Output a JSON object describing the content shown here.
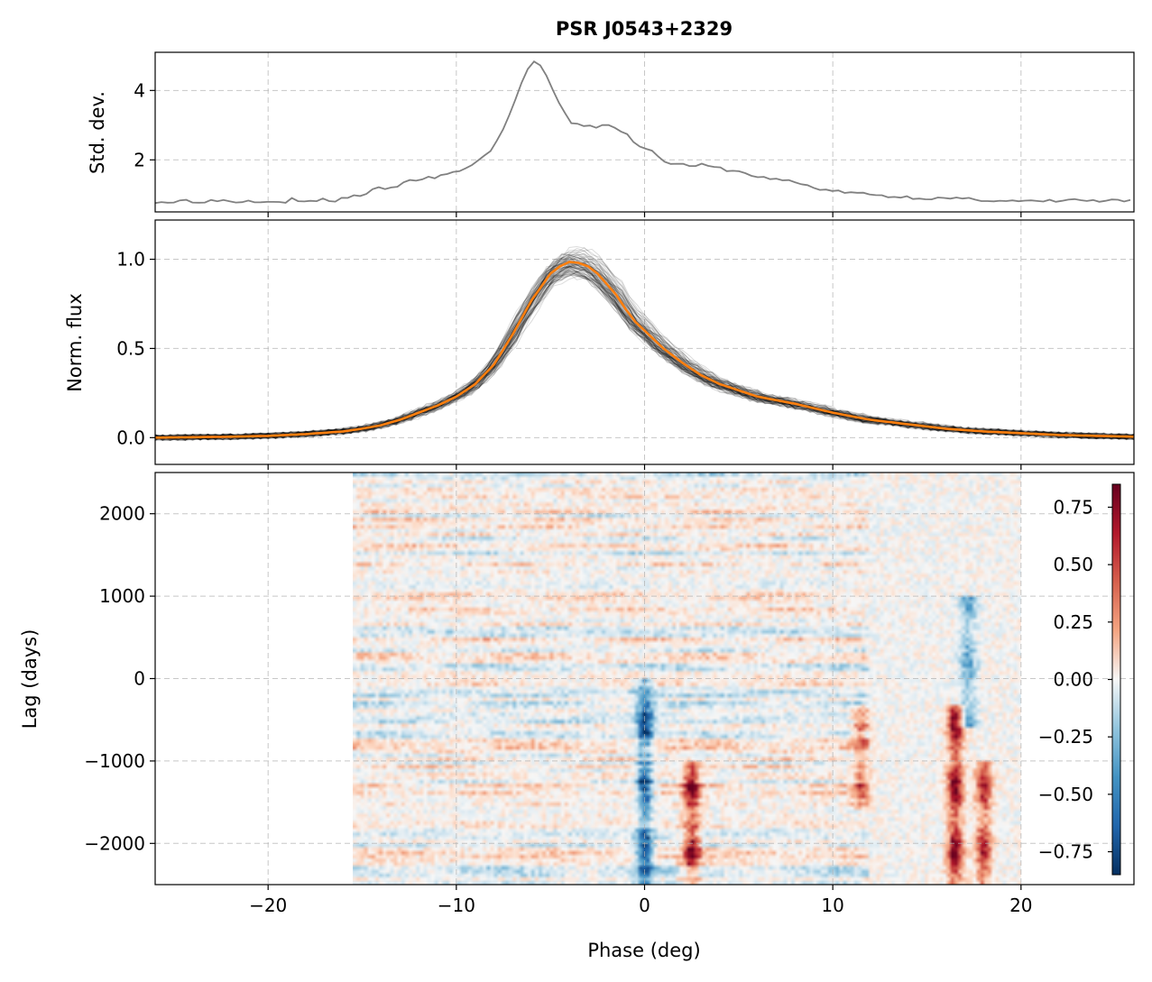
{
  "chart_data": [
    {
      "type": "line",
      "panel": "std-dev",
      "title": "PSR J0543+2329",
      "ylabel": "Std. dev.",
      "xlim": [
        -26,
        26
      ],
      "ylim": [
        0.5,
        5.1
      ],
      "xticks": [
        -20,
        -10,
        0,
        10,
        20
      ],
      "yticks": [
        2,
        4
      ],
      "grid": true,
      "color": "#808080",
      "series": [
        {
          "x": [
            -26,
            -25,
            -24.5,
            -24,
            -23,
            -22.5,
            -22,
            -21,
            -20,
            -19,
            -18.8,
            -18.5,
            -18,
            -17,
            -16.5,
            -16,
            -15,
            -14,
            -13.5,
            -13,
            -12,
            -11,
            -10,
            -9,
            -8.5,
            -8,
            -7.5,
            -7,
            -6.5,
            -6,
            -5.8,
            -5.5,
            -5.3,
            -5,
            -4.5,
            -4,
            -3.5,
            -3,
            -2.5,
            -2,
            -1.5,
            -1,
            -0.5,
            0,
            0.2,
            0.5,
            1,
            1.5,
            2,
            2.5,
            3,
            3.5,
            4,
            4.5,
            5,
            5.5,
            6,
            7,
            8,
            9,
            10,
            11,
            12,
            13,
            14,
            15,
            16,
            17,
            18,
            19,
            20,
            21,
            22,
            23,
            24,
            25,
            26
          ],
          "y": [
            0.8,
            0.78,
            0.85,
            0.8,
            0.82,
            0.85,
            0.8,
            0.82,
            0.82,
            0.8,
            0.9,
            0.78,
            0.8,
            0.85,
            0.82,
            0.9,
            1.0,
            1.2,
            1.15,
            1.3,
            1.45,
            1.5,
            1.65,
            1.9,
            2.1,
            2.4,
            2.9,
            3.5,
            4.3,
            4.8,
            4.85,
            4.7,
            4.5,
            4.1,
            3.6,
            3.1,
            3.0,
            3.0,
            2.95,
            3.0,
            2.9,
            2.75,
            2.5,
            2.3,
            2.4,
            2.2,
            2.0,
            1.9,
            1.85,
            1.85,
            1.85,
            1.8,
            1.75,
            1.7,
            1.65,
            1.6,
            1.5,
            1.45,
            1.35,
            1.2,
            1.1,
            1.05,
            1.0,
            0.95,
            0.92,
            0.9,
            0.88,
            0.87,
            0.85,
            0.82,
            0.8,
            0.8,
            0.82,
            0.85,
            0.8,
            0.82,
            0.8
          ]
        }
      ]
    },
    {
      "type": "line",
      "panel": "norm-flux",
      "ylabel": "Norm. flux",
      "xlim": [
        -26,
        26
      ],
      "ylim": [
        -0.15,
        1.22
      ],
      "xticks": [
        -20,
        -10,
        0,
        10,
        20
      ],
      "yticks": [
        0.0,
        0.5,
        1.0
      ],
      "ytick_labels": [
        "0.0",
        "0.5",
        "1.0"
      ],
      "grid": true,
      "individual_profiles_color": "#000000",
      "mean_color": "#ff7f0e",
      "series": [
        {
          "x": [
            -26,
            -22,
            -20,
            -18,
            -16,
            -15,
            -14,
            -13,
            -12,
            -11,
            -10,
            -9,
            -8,
            -7,
            -6,
            -5,
            -4.5,
            -4,
            -3.5,
            -3,
            -2.5,
            -2,
            -1.5,
            -1,
            -0.5,
            0,
            0.5,
            1,
            2,
            3,
            4,
            5,
            6,
            7,
            8,
            9,
            10,
            12,
            14,
            16,
            18,
            20,
            22,
            24,
            26
          ],
          "y": [
            0.0,
            0.005,
            0.01,
            0.02,
            0.035,
            0.05,
            0.07,
            0.1,
            0.14,
            0.18,
            0.23,
            0.3,
            0.41,
            0.58,
            0.77,
            0.92,
            0.96,
            0.985,
            0.98,
            0.96,
            0.92,
            0.86,
            0.8,
            0.72,
            0.65,
            0.6,
            0.55,
            0.5,
            0.42,
            0.35,
            0.3,
            0.265,
            0.23,
            0.21,
            0.19,
            0.165,
            0.14,
            0.1,
            0.075,
            0.05,
            0.035,
            0.025,
            0.015,
            0.01,
            0.005
          ]
        }
      ]
    },
    {
      "type": "heatmap",
      "panel": "lag-correlation",
      "xlabel": "Phase (deg)",
      "ylabel": "Lag (days)",
      "xlim": [
        -26,
        26
      ],
      "ylim": [
        -2500,
        2500
      ],
      "data_x_range": [
        -15.5,
        20
      ],
      "xticks": [
        -20,
        -10,
        0,
        10,
        20
      ],
      "xtick_labels": [
        "−20",
        "−10",
        "0",
        "10",
        "20"
      ],
      "yticks": [
        -2000,
        -1000,
        0,
        1000,
        2000
      ],
      "ytick_labels": [
        "−2000",
        "−1000",
        "0",
        "1000",
        "2000"
      ],
      "grid": true,
      "colormap": "RdBu_r",
      "colorbar": {
        "vmin": -0.85,
        "vmax": 0.85,
        "ticks": [
          -0.75,
          -0.5,
          -0.25,
          0,
          0.25,
          0.5,
          0.75
        ],
        "tick_labels": [
          "−0.75",
          "−0.50",
          "−0.25",
          "0.00",
          "0.25",
          "0.50",
          "0.75"
        ],
        "placement": "inset-right"
      },
      "features": [
        {
          "phase": 0,
          "lag_range": [
            -2500,
            0
          ],
          "value": -0.8
        },
        {
          "phase": 2.5,
          "lag_range": [
            -2500,
            -1000
          ],
          "value": 0.75
        },
        {
          "phase": 16.5,
          "lag_range": [
            -2500,
            -300
          ],
          "value": 0.85
        },
        {
          "phase": 18,
          "lag_range": [
            -2500,
            -1000
          ],
          "value": 0.7
        },
        {
          "phase": 11.5,
          "lag_range": [
            -1600,
            -300
          ],
          "value": 0.45
        },
        {
          "phase": 17.2,
          "lag_range": [
            -600,
            1000
          ],
          "value": -0.5
        }
      ]
    }
  ]
}
